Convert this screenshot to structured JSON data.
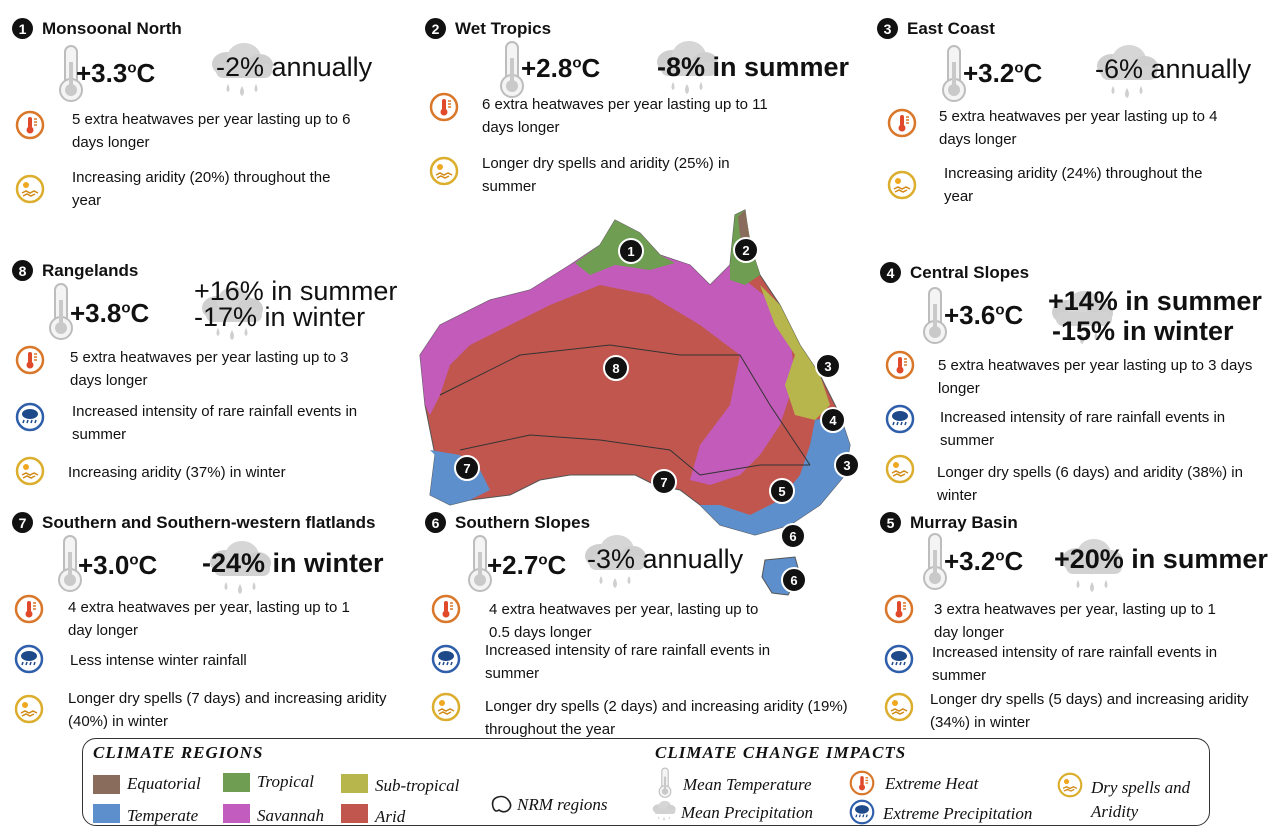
{
  "colors": {
    "equatorial": "#8a6c5c",
    "tropical": "#6f9e52",
    "subtropical": "#b7b64c",
    "temperate": "#5d8fcc",
    "savannah": "#c25cbf",
    "arid": "#c0564e",
    "heat_icon": "#d9772a",
    "precip_icon": "#2f5faa",
    "dry_icon": "#dcae2e"
  },
  "regions": [
    {
      "num": "1",
      "name": "Monsoonal  North",
      "temp": "+3.3",
      "temp_unit": "o",
      "temp_c": "C",
      "precip": "-2% annually",
      "impacts": [
        {
          "icon": "extreme-heat-icon",
          "text": "5 extra heatwaves per year lasting up to 6 days longer"
        },
        {
          "icon": "dry-spells-icon",
          "text": "Increasing aridity (20%)  throughout the year"
        }
      ]
    },
    {
      "num": "2",
      "name": "Wet Tropics",
      "temp": "+2.8",
      "temp_unit": "o",
      "temp_c": "C",
      "precip": "-8% in summer",
      "impacts": [
        {
          "icon": "extreme-heat-icon",
          "text": "6 extra heatwaves per year lasting up to 11 days longer"
        },
        {
          "icon": "dry-spells-icon",
          "text": "Longer dry spells and aridity (25%) in summer"
        }
      ]
    },
    {
      "num": "3",
      "name": "East Coast",
      "temp": "+3.2",
      "temp_unit": "o",
      "temp_c": "C",
      "precip": "-6% annually",
      "impacts": [
        {
          "icon": "extreme-heat-icon",
          "text": "5 extra heatwaves per year lasting up to 4 days longer"
        },
        {
          "icon": "dry-spells-icon",
          "text": "Increasing aridity (24%) throughout the year"
        }
      ]
    },
    {
      "num": "8",
      "name": "Rangelands",
      "temp": "+3.8",
      "temp_unit": "o",
      "temp_c": "C",
      "precip": "+16% in summer",
      "precip2": "-17% in winter",
      "impacts": [
        {
          "icon": "extreme-heat-icon",
          "text": "5 extra heatwaves per year lasting up to 3 days longer"
        },
        {
          "icon": "extreme-precipitation-icon",
          "text": "Increased intensity of rare rainfall events in summer"
        },
        {
          "icon": "dry-spells-icon",
          "text": "Increasing aridity (37%) in winter"
        }
      ]
    },
    {
      "num": "4",
      "name": "Central Slopes",
      "temp": "+3.6",
      "temp_unit": "o",
      "temp_c": "C",
      "precip": "+14% in summer",
      "precip2": "-15% in winter",
      "impacts": [
        {
          "icon": "extreme-heat-icon",
          "text": "5 extra heatwaves per year lasting up to 3 days longer"
        },
        {
          "icon": "extreme-precipitation-icon",
          "text": "Increased intensity of rare rainfall events in summer"
        },
        {
          "icon": "dry-spells-icon",
          "text": "Longer dry spells (6 days) and aridity (38%) in winter"
        }
      ]
    },
    {
      "num": "7",
      "name": "Southern and Southern-western flatlands",
      "temp": "+3.0",
      "temp_unit": "o",
      "temp_c": "C",
      "precip": "-24% in winter",
      "impacts": [
        {
          "icon": "extreme-heat-icon",
          "text": "4 extra heatwaves per year, lasting up to 1 day longer"
        },
        {
          "icon": "extreme-precipitation-icon",
          "text": "Less intense winter rainfall"
        },
        {
          "icon": "dry-spells-icon",
          "text": "Longer dry spells (7 days) and increasing aridity (40%) in winter"
        }
      ]
    },
    {
      "num": "6",
      "name": "Southern Slopes",
      "temp": "+2.7",
      "temp_unit": "o",
      "temp_c": "C",
      "precip": "-3% annually",
      "impacts": [
        {
          "icon": "extreme-heat-icon",
          "text": "4 extra heatwaves per year, lasting up to 0.5 days longer"
        },
        {
          "icon": "extreme-precipitation-icon",
          "text": "Increased intensity of rare rainfall events in summer"
        },
        {
          "icon": "dry-spells-icon",
          "text": "Longer dry spells (2 days) and increasing aridity (19%)  throughout the year"
        }
      ]
    },
    {
      "num": "5",
      "name": "Murray Basin",
      "temp": "+3.2",
      "temp_unit": "o",
      "temp_c": "C",
      "precip": "+20% in summer",
      "impacts": [
        {
          "icon": "extreme-heat-icon",
          "text": "3 extra heatwaves per year, lasting up to 1 day longer"
        },
        {
          "icon": "extreme-precipitation-icon",
          "text": "Increased intensity of rare rainfall events in summer"
        },
        {
          "icon": "dry-spells-icon",
          "text": "Longer dry spells (5 days) and increasing aridity (34%) in winter"
        }
      ]
    }
  ],
  "map_labels": [
    "1",
    "2",
    "3",
    "4",
    "3",
    "5",
    "6",
    "6",
    "7",
    "7",
    "8"
  ],
  "legend": {
    "climate_regions_title": "CLIMATE REGIONS",
    "regions": [
      "Equatorial",
      "Tropical",
      "Sub-tropical",
      "Temperate",
      "Savannah",
      "Arid"
    ],
    "nrm_label": "NRM regions",
    "impacts_title": "CLIMATE CHANGE IMPACTS",
    "impacts": [
      "Mean Temperature",
      "Mean Precipitation",
      "Extreme Heat",
      "Extreme Precipitation",
      "Dry spells and Aridity"
    ]
  }
}
